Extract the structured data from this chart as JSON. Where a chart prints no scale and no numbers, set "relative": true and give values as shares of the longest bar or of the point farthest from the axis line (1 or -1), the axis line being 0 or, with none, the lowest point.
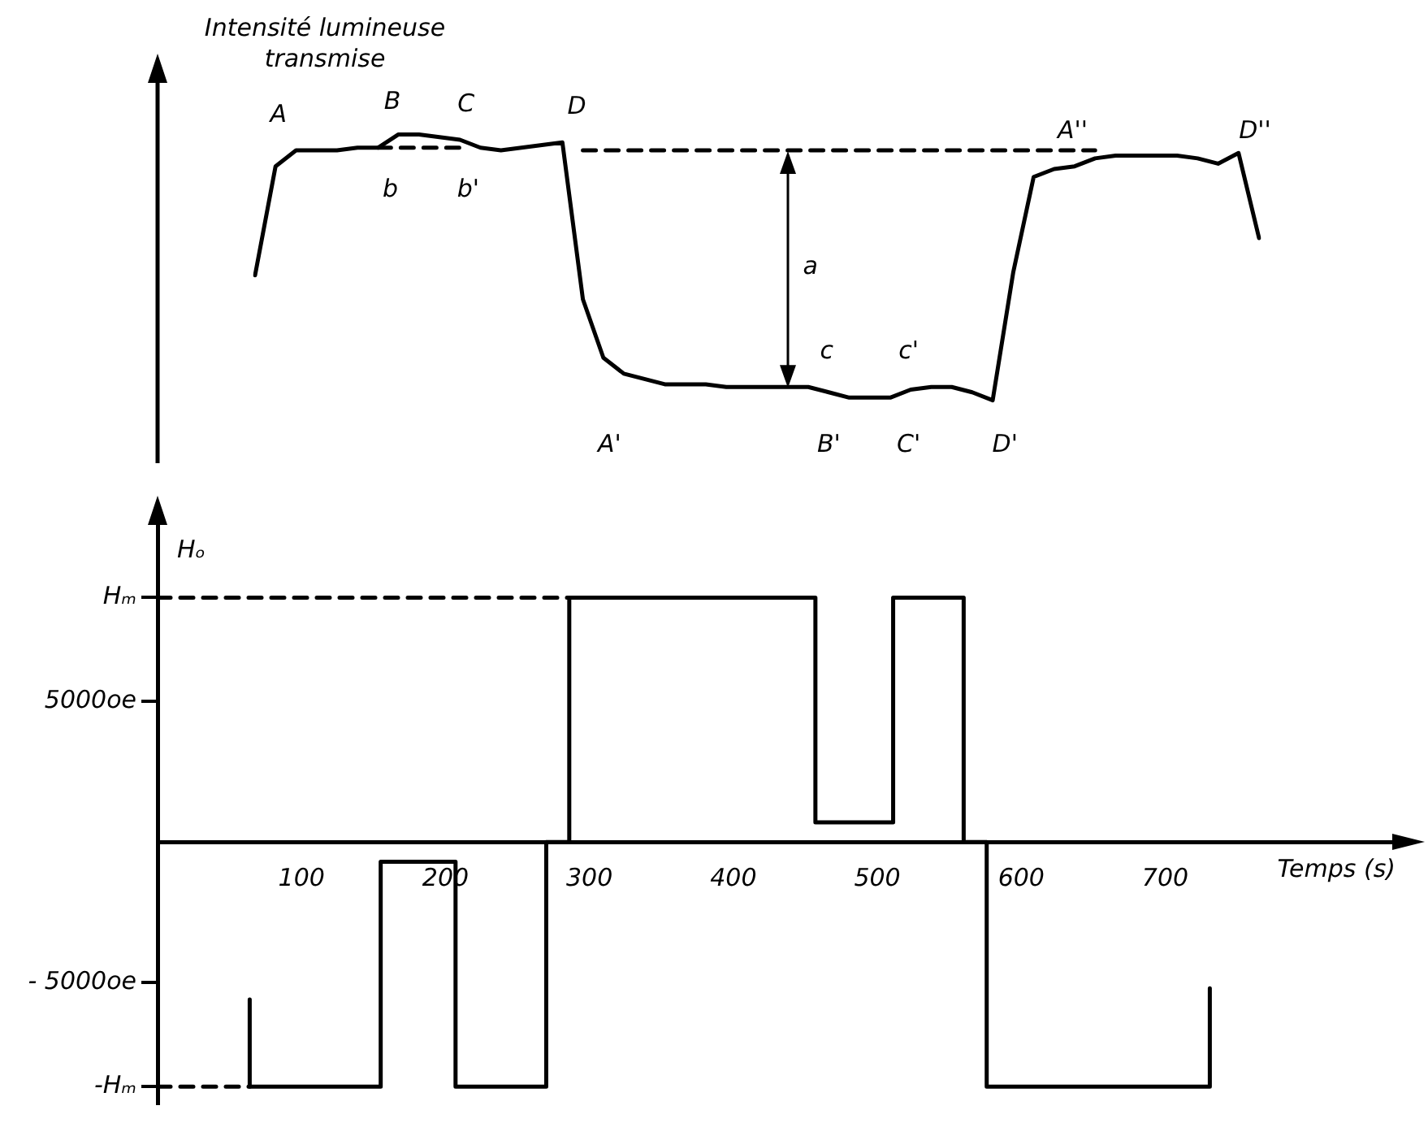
{
  "chart_data": [
    {
      "type": "line",
      "relative": true,
      "ylabel": "Intensité lumineuse transmise",
      "grid": false,
      "legend": false,
      "marker": "none",
      "categories": [
        null,
        null,
        null,
        null,
        null,
        null,
        null,
        null,
        null,
        null,
        null,
        null,
        null,
        null,
        null,
        null,
        null,
        null,
        null,
        null,
        null,
        null,
        null,
        null,
        null,
        null,
        null,
        null,
        null,
        null,
        null,
        null,
        null,
        null,
        null,
        null,
        null,
        null,
        null,
        null,
        null,
        null,
        null,
        null,
        null,
        null,
        null,
        null,
        null,
        null
      ],
      "series": [
        {
          "color": "#000000",
          "line_style": "solid",
          "values": [
            0.47,
            0.88,
            0.94,
            0.94,
            0.94,
            0.95,
            0.95,
            1,
            1,
            0.99,
            0.98,
            0.95,
            0.94,
            0.95,
            0.96,
            0.97,
            0.38,
            0.16,
            0.1,
            0.08,
            0.06,
            0.06,
            0.06,
            0.05,
            0.05,
            0.05,
            0.05,
            0.05,
            0.03,
            0.01,
            0.01,
            0.01,
            0.04,
            0.05,
            0.05,
            0.03,
            0,
            0.48,
            0.84,
            0.87,
            0.88,
            0.91,
            0.92,
            0.92,
            0.92,
            0.92,
            0.91,
            0.89,
            0.93,
            0.61
          ]
        },
        {
          "color": "#000000",
          "line_style": "dashed",
          "values": [
            null,
            null,
            null,
            null,
            null,
            null,
            null,
            null,
            null,
            null,
            null,
            null,
            null,
            null,
            null,
            null,
            0.94,
            0.94,
            0.94,
            0.94,
            0.94,
            0.94,
            0.94,
            0.94,
            0.94,
            0.94,
            0.94,
            0.94,
            0.94,
            0.94,
            0.94,
            0.94,
            0.94,
            0.94,
            0.94,
            0.94,
            0.94,
            0.94,
            0.94,
            0.94,
            0.94,
            0.94,
            null,
            null,
            null,
            null,
            null,
            null,
            null,
            null
          ]
        },
        {
          "color": "#000000",
          "line_style": "dashed",
          "values": [
            null,
            null,
            null,
            null,
            null,
            null,
            0.95,
            0.95,
            0.95,
            0.95,
            0.95,
            null,
            null,
            null,
            null,
            null,
            null,
            null,
            null,
            null,
            null,
            null,
            null,
            null,
            null,
            null,
            null,
            null,
            null,
            null,
            null,
            null,
            null,
            null,
            null,
            null,
            null,
            null,
            null,
            null,
            null,
            null,
            null,
            null,
            null,
            null,
            null,
            null,
            null,
            null
          ]
        }
      ],
      "annotations": [
        "A",
        "B",
        "C",
        "D",
        "b",
        "b'",
        "a",
        "A'",
        "c",
        "c'",
        "B'",
        "C'",
        "D'",
        "A''",
        "D''"
      ]
    },
    {
      "type": "step",
      "ylabel": "Hₒ",
      "xlabel": "Temps (s)",
      "xlim": [
        0,
        860
      ],
      "xticks": [
        100,
        200,
        300,
        400,
        500,
        600,
        700
      ],
      "ylim": [
        -9300,
        11400
      ],
      "yticks": [
        {
          "value": 8700,
          "label": "Hₘ"
        },
        {
          "value": 5000,
          "label": "5000oe"
        },
        {
          "value": -5000,
          "label": "- 5000oe"
        },
        {
          "value": -8700,
          "label": "-Hₘ"
        }
      ],
      "grid": false,
      "legend": false,
      "marker": "none",
      "series": [
        {
          "color": "#000000",
          "x": [
            64,
            64,
            155,
            207,
            270,
            286,
            457,
            511,
            560,
            576,
            731,
            731
          ],
          "values": [
            -5600,
            -8700,
            -700,
            -8700,
            0,
            8700,
            700,
            8700,
            0,
            -8700,
            -8700,
            -5200
          ]
        },
        {
          "type": "line",
          "color": "#000000",
          "line_style": "dashed",
          "x": [
            0,
            286
          ],
          "values": [
            8700,
            8700
          ]
        },
        {
          "type": "line",
          "color": "#000000",
          "line_style": "dashed",
          "x": [
            0,
            64
          ],
          "values": [
            -8700,
            -8700
          ]
        }
      ]
    }
  ]
}
